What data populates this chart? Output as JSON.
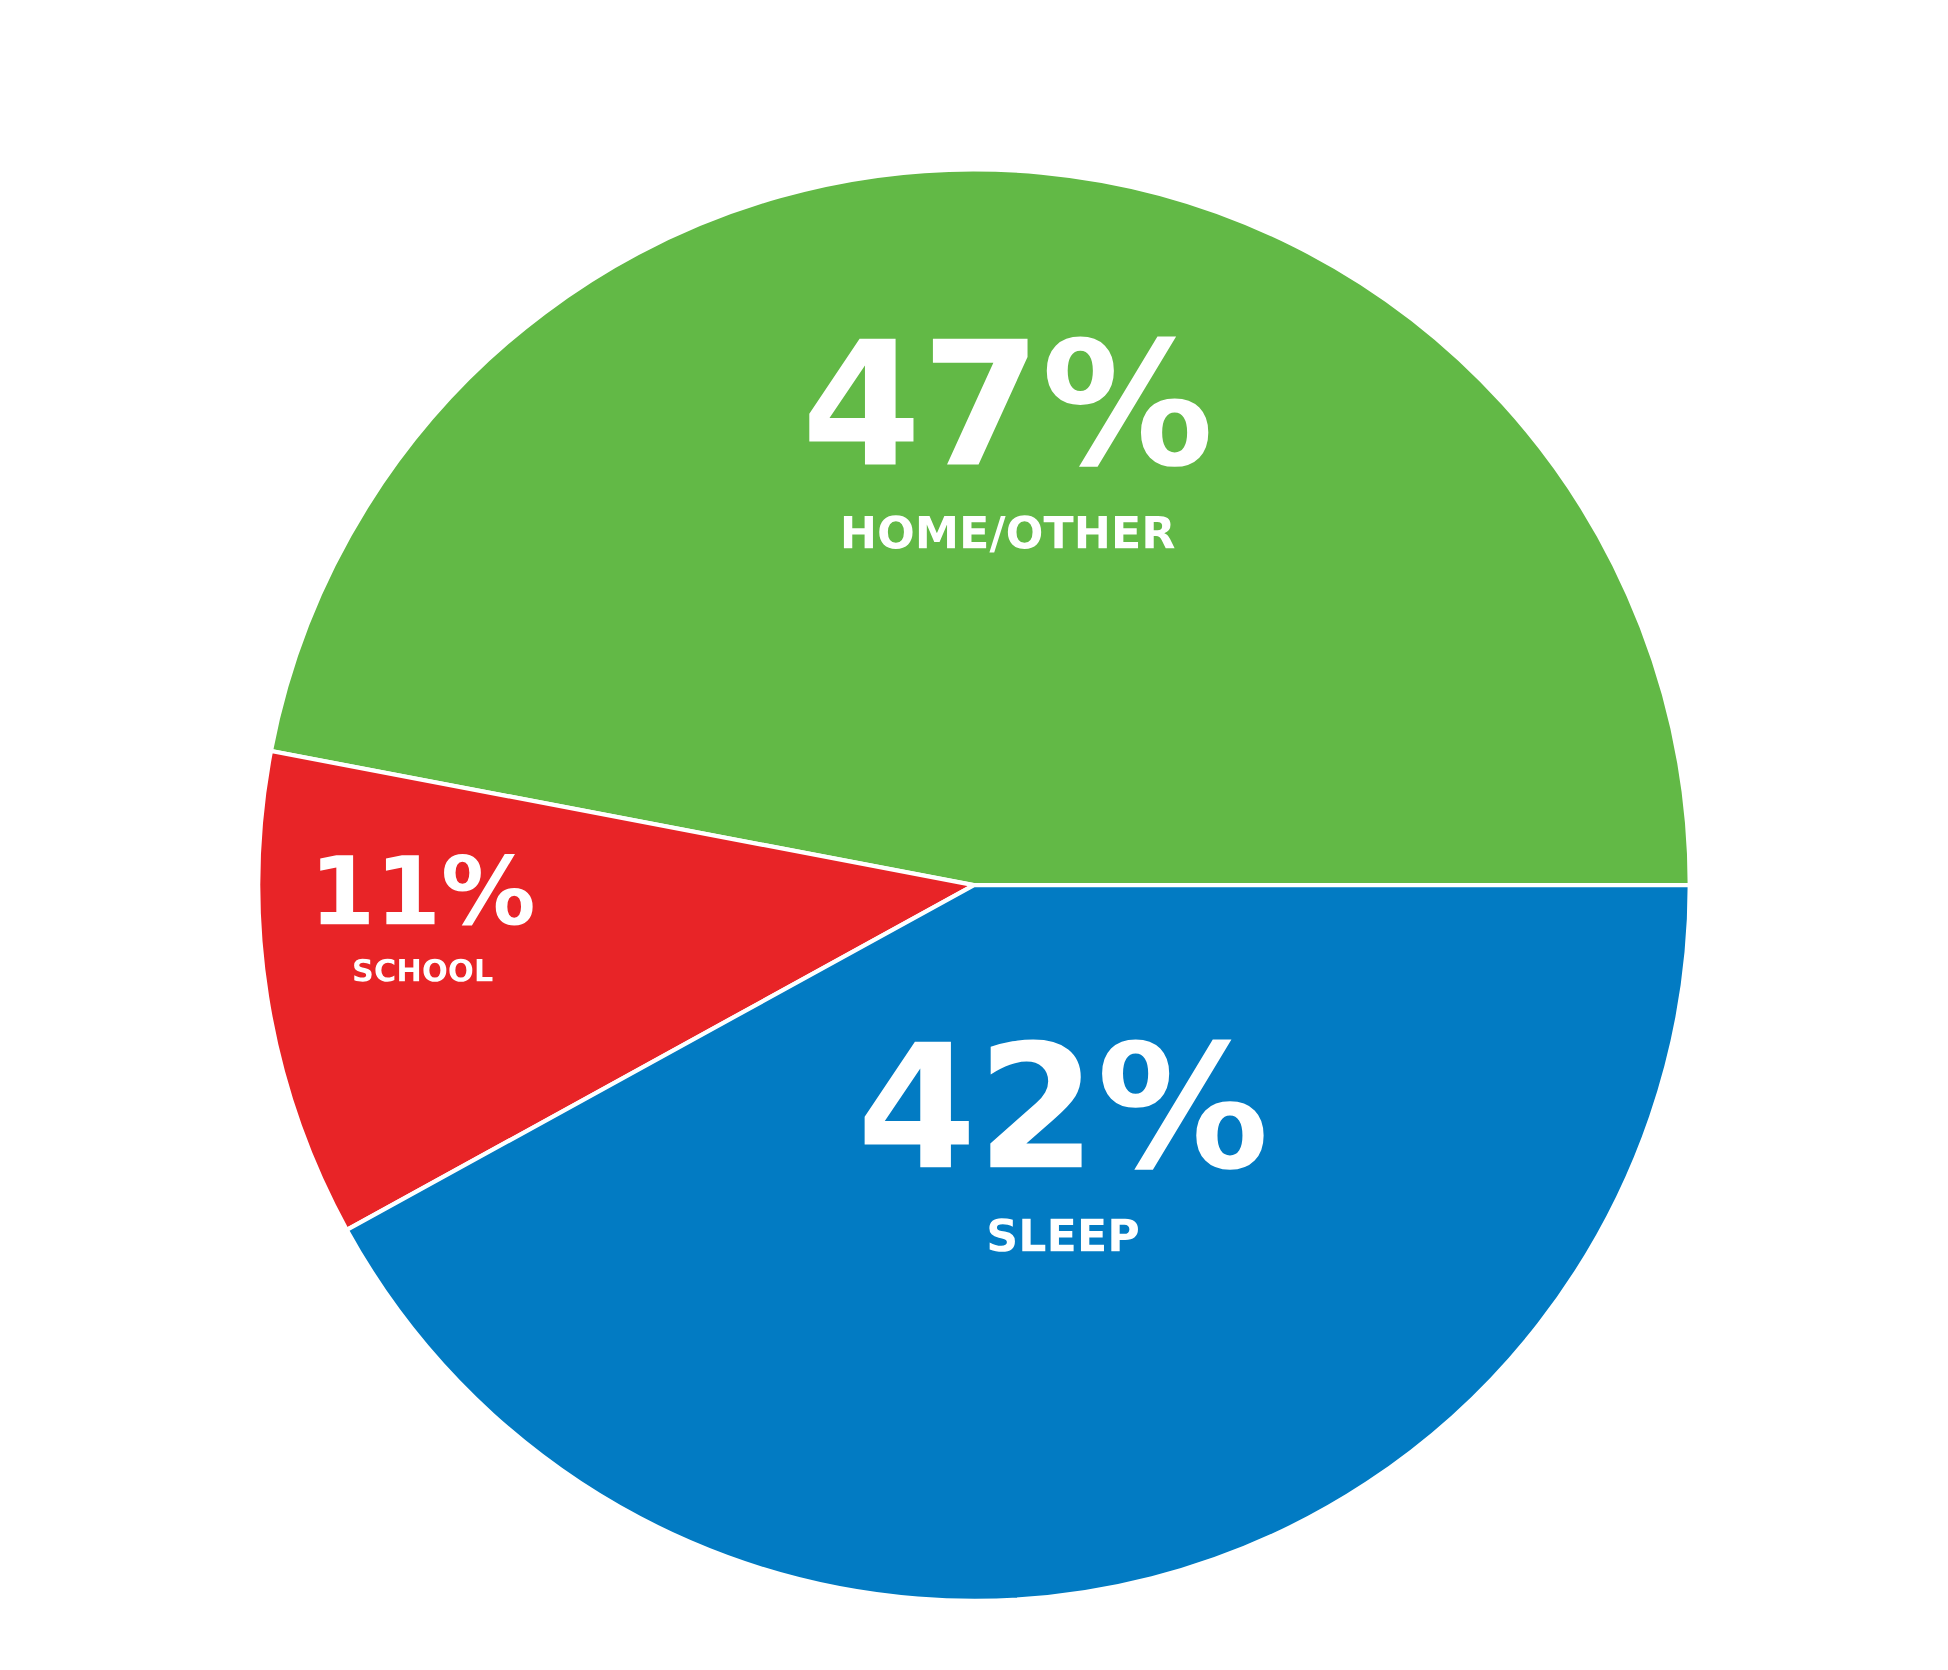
{
  "chart_data": {
    "type": "pie",
    "categories": [
      "HOME/OTHER",
      "SCHOOL",
      "SLEEP"
    ],
    "values": [
      47,
      11,
      42
    ],
    "colors": [
      "#62b946",
      "#e82427",
      "#027bc3"
    ],
    "value_labels": [
      "47%",
      "11%",
      "42%"
    ],
    "legend": false
  }
}
